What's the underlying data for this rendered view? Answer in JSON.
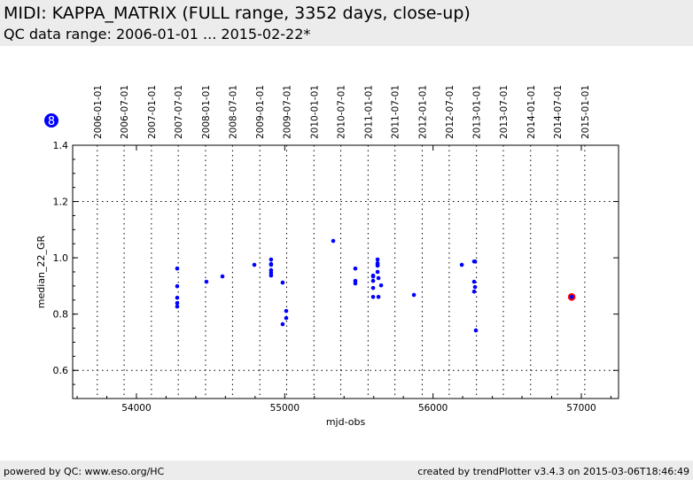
{
  "header": {
    "title": "MIDI: KAPPA_MATRIX (FULL range, 3352 days, close-up)",
    "subtitle": "QC data range: 2006-01-01 ... 2015-02-22*"
  },
  "badge": {
    "label": "8",
    "color": "#0000ff"
  },
  "footer": {
    "left": "powered by QC: www.eso.org/HC",
    "right": "created by trendPlotter v3.4.3 on 2015-03-06T18:46:49"
  },
  "chart_data": {
    "type": "scatter",
    "xlabel": "mjd-obs",
    "ylabel": "median_22_GR",
    "xlim": [
      53570,
      57251
    ],
    "ylim": [
      0.5,
      1.4
    ],
    "xticks": [
      54000,
      55000,
      56000,
      57000
    ],
    "yticks": [
      0.6,
      0.8,
      1.0,
      1.2,
      1.4
    ],
    "ygrid": [
      0.6,
      1.2
    ],
    "date_ticks": [
      {
        "label": "2006-01-01",
        "mjd": 53736
      },
      {
        "label": "2006-07-01",
        "mjd": 53917
      },
      {
        "label": "2007-01-01",
        "mjd": 54101
      },
      {
        "label": "2007-07-01",
        "mjd": 54282
      },
      {
        "label": "2008-01-01",
        "mjd": 54466
      },
      {
        "label": "2008-07-01",
        "mjd": 54648
      },
      {
        "label": "2009-01-01",
        "mjd": 54832
      },
      {
        "label": "2009-07-01",
        "mjd": 55013
      },
      {
        "label": "2010-01-01",
        "mjd": 55197
      },
      {
        "label": "2010-07-01",
        "mjd": 55378
      },
      {
        "label": "2011-01-01",
        "mjd": 55562
      },
      {
        "label": "2011-07-01",
        "mjd": 55743
      },
      {
        "label": "2012-01-01",
        "mjd": 55927
      },
      {
        "label": "2012-07-01",
        "mjd": 56109
      },
      {
        "label": "2013-01-01",
        "mjd": 56293
      },
      {
        "label": "2013-07-01",
        "mjd": 56474
      },
      {
        "label": "2014-01-01",
        "mjd": 56658
      },
      {
        "label": "2014-07-01",
        "mjd": 56839
      },
      {
        "label": "2015-01-01",
        "mjd": 57023
      }
    ],
    "point_color": "#0000ff",
    "highlight_color": "#ff0000",
    "points": [
      [
        54275,
        0.962
      ],
      [
        54275,
        0.899
      ],
      [
        54275,
        0.858
      ],
      [
        54275,
        0.839
      ],
      [
        54275,
        0.827
      ],
      [
        54472,
        0.915
      ],
      [
        54580,
        0.934
      ],
      [
        54795,
        0.975
      ],
      [
        54908,
        0.994
      ],
      [
        54908,
        0.978
      ],
      [
        54908,
        0.975
      ],
      [
        54908,
        0.956
      ],
      [
        54908,
        0.946
      ],
      [
        54908,
        0.937
      ],
      [
        54986,
        0.912
      ],
      [
        55010,
        0.811
      ],
      [
        55010,
        0.786
      ],
      [
        54986,
        0.764
      ],
      [
        55327,
        1.06
      ],
      [
        55476,
        0.962
      ],
      [
        55476,
        0.918
      ],
      [
        55476,
        0.909
      ],
      [
        55596,
        0.937
      ],
      [
        55596,
        0.934
      ],
      [
        55596,
        0.918
      ],
      [
        55596,
        0.893
      ],
      [
        55596,
        0.861
      ],
      [
        55626,
        0.994
      ],
      [
        55626,
        0.981
      ],
      [
        55626,
        0.975
      ],
      [
        55626,
        0.972
      ],
      [
        55626,
        0.95
      ],
      [
        55632,
        0.928
      ],
      [
        55650,
        0.902
      ],
      [
        55632,
        0.861
      ],
      [
        55871,
        0.868
      ],
      [
        56194,
        0.975
      ],
      [
        56277,
        0.987
      ],
      [
        56283,
        0.987
      ],
      [
        56277,
        0.915
      ],
      [
        56283,
        0.896
      ],
      [
        56277,
        0.88
      ],
      [
        56289,
        0.742
      ]
    ],
    "highlight": [
      56935,
      0.861
    ]
  }
}
